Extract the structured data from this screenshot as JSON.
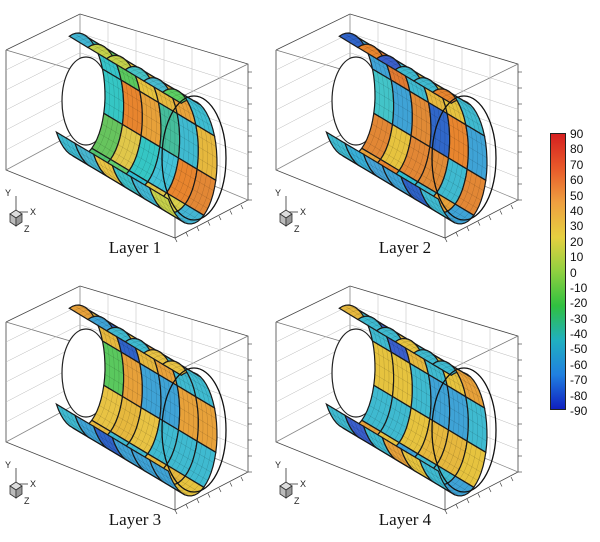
{
  "panels": [
    {
      "caption": "Layer 1",
      "patches": [
        "#40b4d2",
        "#36c3c8",
        "#35c6c4",
        "#67c45e",
        "#51c56f",
        "#3fbad0",
        "#c4d14a",
        "#5ac85e",
        "#e8852e",
        "#e0c74a",
        "#61ce6d",
        "#47b6cf",
        "#c3d14a",
        "#e6c33f",
        "#e7a13a",
        "#35c6c4",
        "#2ebfd4",
        "#e8c344",
        "#47c4c6",
        "#e6b83e",
        "#45bd9b",
        "#42c1d6",
        "#e0c74a",
        "#3dc0c8",
        "#47bacf",
        "#e9a33a",
        "#3fbad0",
        "#e8852e",
        "#d9d04c",
        "#41b7d4",
        "#5ccf63",
        "#3ebdd1",
        "#e6b83e",
        "#e28735",
        "#44b5d3",
        "#c6d14a"
      ]
    },
    {
      "caption": "Layer 2",
      "patches": [
        "#2f63c8",
        "#3fa3d6",
        "#43c4c8",
        "#e28735",
        "#e9a33a",
        "#3fbad0",
        "#e8852e",
        "#e17a32",
        "#3fa3d6",
        "#e6c33f",
        "#e8852e",
        "#38b0d8",
        "#3a5fcc",
        "#3fbad0",
        "#e08a36",
        "#e28735",
        "#2ebfd4",
        "#46a3d6",
        "#3fbad0",
        "#e6b83e",
        "#3067c9",
        "#e08a36",
        "#3fbad0",
        "#3fa3d6",
        "#3fbad0",
        "#e6c33f",
        "#e8852e",
        "#3fbad0",
        "#e7a13a",
        "#2f63c8",
        "#e8852e",
        "#3fbad0",
        "#3fa3d6",
        "#e28735",
        "#3fa3d6",
        "#3fbad0"
      ]
    },
    {
      "caption": "Layer 3",
      "patches": [
        "#e7a13a",
        "#e6b83e",
        "#5ac85e",
        "#e8c344",
        "#e6b83e",
        "#3fbad0",
        "#3fa3d6",
        "#2f63c8",
        "#e7a13a",
        "#e6b83e",
        "#3fbad0",
        "#3fa3d6",
        "#3fbad0",
        "#e6b83e",
        "#3fa3d6",
        "#e8c344",
        "#3fbad0",
        "#2f63c8",
        "#3fbad0",
        "#e7a13a",
        "#3fa3d6",
        "#3fbad0",
        "#e6b83e",
        "#3fa3d6",
        "#e8c344",
        "#3fbad0",
        "#e7a13a",
        "#3fbad0",
        "#e6b83e",
        "#3fa3d6",
        "#e8c344",
        "#3fbad0",
        "#e7a13a",
        "#3fbad0",
        "#e6c33f",
        "#3fa3d6"
      ]
    },
    {
      "caption": "Layer 4",
      "patches": [
        "#e6b83e",
        "#3fbad0",
        "#e6c33f",
        "#3fbad0",
        "#e7a13a",
        "#3fbad0",
        "#3fbad0",
        "#3a5fcc",
        "#e6c33f",
        "#3fbad0",
        "#e6c33f",
        "#3a5fcc",
        "#3fbad0",
        "#e6b83e",
        "#3fbad0",
        "#e6c33f",
        "#3fa3d6",
        "#3fbad0",
        "#e6c33f",
        "#3fbad0",
        "#3fa3d6",
        "#e6b83e",
        "#3fbad0",
        "#e7a13a",
        "#3fbad0",
        "#e6c33f",
        "#3fa3d6",
        "#e6b83e",
        "#3fbad0",
        "#e6c33f",
        "#3fbad0",
        "#e7a13a",
        "#3fbad0",
        "#e6c33f",
        "#3fa3d6",
        "#3fbad0"
      ]
    }
  ],
  "axes": {
    "y": "Y",
    "x": "X",
    "z": "Z"
  },
  "colorbar": {
    "labels": [
      "90",
      "80",
      "70",
      "60",
      "50",
      "40",
      "30",
      "20",
      "10",
      "0",
      "-10",
      "-20",
      "-30",
      "-40",
      "-50",
      "-60",
      "-70",
      "-80",
      "-90"
    ],
    "gradient": [
      "#d62020",
      "#e85a2a",
      "#eea040",
      "#e6d040",
      "#8fd040",
      "#30c040",
      "#20b0c0",
      "#2080e0",
      "#1020c0"
    ]
  }
}
